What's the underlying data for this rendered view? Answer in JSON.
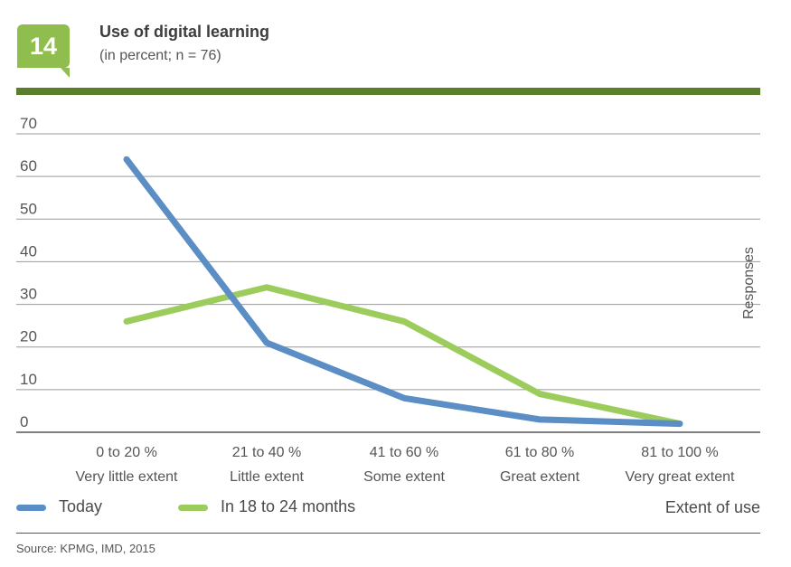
{
  "header": {
    "figure_number": "14",
    "title": "Use of digital learning",
    "subtitle": "(in percent; n = 76)"
  },
  "chart_data": {
    "type": "line",
    "categories": [
      "0 to 20 %",
      "21 to 40 %",
      "41 to 60 %",
      "61 to 80 %",
      "81 to 100 %"
    ],
    "category_sublabels": [
      "Very little extent",
      "Little extent",
      "Some extent",
      "Great extent",
      "Very great extent"
    ],
    "series": [
      {
        "name": "Today",
        "color": "#5b8ec4",
        "values": [
          64,
          21,
          8,
          3,
          2
        ]
      },
      {
        "name": "In 18 to 24 months",
        "color": "#9ccc5c",
        "values": [
          26,
          34,
          26,
          9,
          2
        ]
      }
    ],
    "ylim": [
      0,
      70
    ],
    "yticks": [
      0,
      10,
      20,
      30,
      40,
      50,
      60,
      70
    ],
    "ylabel": "Responses",
    "xlabel": "Extent of use",
    "grid": true
  },
  "footer": {
    "source": "Source: KPMG, IMD, 2015"
  },
  "colors": {
    "badge": "#8fbe4e",
    "topbar": "#5b7e2c",
    "today": "#5b8ec4",
    "future": "#9ccc5c"
  }
}
